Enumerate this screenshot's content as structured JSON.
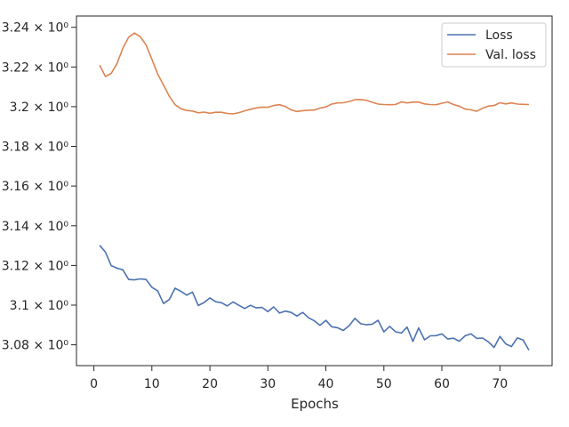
{
  "chart_data": {
    "type": "line",
    "xlabel": "Epochs",
    "ylabel": "",
    "xlim": [
      -3,
      79
    ],
    "ylim": [
      3.0695,
      3.2457
    ],
    "x_ticks": [
      0,
      10,
      20,
      30,
      40,
      50,
      60,
      70
    ],
    "y_ticks": [
      3.08,
      3.1,
      3.12,
      3.14,
      3.16,
      3.18,
      3.2,
      3.22,
      3.24
    ],
    "y_tick_labels": [
      "3.08 × 10⁰",
      "3.1 × 10⁰",
      "3.12 × 10⁰",
      "3.14 × 10⁰",
      "3.16 × 10⁰",
      "3.18 × 10⁰",
      "3.2 × 10⁰",
      "3.22 × 10⁰",
      "3.24 × 10⁰"
    ],
    "legend_position": "top-right",
    "grid": false,
    "x": [
      1,
      2,
      3,
      4,
      5,
      6,
      7,
      8,
      9,
      10,
      11,
      12,
      13,
      14,
      15,
      16,
      17,
      18,
      19,
      20,
      21,
      22,
      23,
      24,
      25,
      26,
      27,
      28,
      29,
      30,
      31,
      32,
      33,
      34,
      35,
      36,
      37,
      38,
      39,
      40,
      41,
      42,
      43,
      44,
      45,
      46,
      47,
      48,
      49,
      50,
      51,
      52,
      53,
      54,
      55,
      56,
      57,
      58,
      59,
      60,
      61,
      62,
      63,
      64,
      65,
      66,
      67,
      68,
      69,
      70,
      71,
      72,
      73,
      74,
      75
    ],
    "series": [
      {
        "name": "Loss",
        "color": "#4c72b0",
        "values": [
          3.1301,
          3.1267,
          3.1199,
          3.1186,
          3.1178,
          3.1129,
          3.1127,
          3.1132,
          3.1129,
          3.109,
          3.1072,
          3.1008,
          3.1028,
          3.1085,
          3.107,
          3.105,
          3.1066,
          3.0998,
          3.1013,
          3.1036,
          3.1017,
          3.1012,
          3.0996,
          3.1016,
          3.0999,
          3.0983,
          3.0999,
          3.0986,
          3.0988,
          3.0967,
          3.0991,
          3.096,
          3.097,
          3.0963,
          3.0945,
          3.0963,
          3.0936,
          3.0921,
          3.0898,
          3.0923,
          3.0891,
          3.0886,
          3.0872,
          3.0896,
          3.0933,
          3.0906,
          3.0901,
          3.0904,
          3.0923,
          3.0865,
          3.0893,
          3.0866,
          3.0859,
          3.0889,
          3.0817,
          3.0885,
          3.0825,
          3.0845,
          3.0846,
          3.0855,
          3.0829,
          3.0833,
          3.0818,
          3.0845,
          3.0855,
          3.0832,
          3.0834,
          3.0815,
          3.0787,
          3.0842,
          3.0805,
          3.0791,
          3.0835,
          3.0824,
          3.0773
        ]
      },
      {
        "name": "Val. loss",
        "color": "#dd8452",
        "values": [
          3.2209,
          3.2152,
          3.2168,
          3.2218,
          3.2295,
          3.235,
          3.2371,
          3.2353,
          3.2311,
          3.2239,
          3.2165,
          3.2109,
          3.2053,
          3.201,
          3.199,
          3.1981,
          3.1978,
          3.1969,
          3.1973,
          3.1967,
          3.1972,
          3.1972,
          3.1966,
          3.1964,
          3.197,
          3.1979,
          3.1987,
          3.1994,
          3.1998,
          3.1997,
          3.2006,
          3.201,
          3.2001,
          3.1984,
          3.1976,
          3.198,
          3.1982,
          3.1983,
          3.1993,
          3.1999,
          3.2013,
          3.2019,
          3.202,
          3.2026,
          3.2035,
          3.2036,
          3.2032,
          3.2022,
          3.2013,
          3.2011,
          3.201,
          3.2011,
          3.2024,
          3.2019,
          3.2023,
          3.2023,
          3.2014,
          3.2011,
          3.201,
          3.2017,
          3.2024,
          3.2011,
          3.2003,
          3.1988,
          3.1984,
          3.1977,
          3.1992,
          3.2003,
          3.2006,
          3.202,
          3.2014,
          3.2019,
          3.2013,
          3.2012,
          3.2011
        ]
      }
    ]
  }
}
